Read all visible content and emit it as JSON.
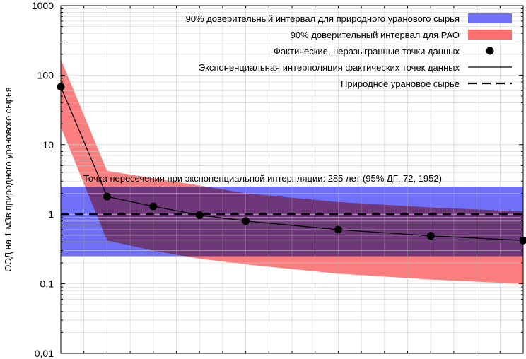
{
  "chart_data": {
    "type": "line",
    "ylabel": "ОЭД на 1 м3в природного уранового сырья",
    "yscale": "log",
    "ylim": [
      0.01,
      1000
    ],
    "y_ticks": [
      {
        "value": 1000,
        "label": "1000"
      },
      {
        "value": 100,
        "label": "100"
      },
      {
        "value": 10,
        "label": "10"
      },
      {
        "value": 1,
        "label": "1"
      },
      {
        "value": 0.1,
        "label": "0,1"
      },
      {
        "value": 0.01,
        "label": "0,01"
      }
    ],
    "xlim": [
      0,
      20
    ],
    "grid": true,
    "legend_position": "top-right",
    "annotation": "Точка пересечения при экспоненциальной интерпляции: 285 лет (95% ДГ: 72, 1952)",
    "series": [
      {
        "name": "90% доверительный интервал для природного уранового сырья",
        "type": "band",
        "color": "#6f6ff8",
        "x": [
          0,
          20
        ],
        "lower": [
          0.25,
          0.25
        ],
        "upper": [
          2.5,
          2.5
        ]
      },
      {
        "name": "90% доверительный интервал для РАО",
        "type": "band",
        "color": "#fc6f6f",
        "x": [
          0,
          2,
          4,
          6,
          8,
          12,
          16,
          20
        ],
        "lower": [
          18,
          0.42,
          0.3,
          0.23,
          0.19,
          0.14,
          0.115,
          0.1
        ],
        "upper": [
          170,
          4.2,
          3.3,
          2.6,
          2.0,
          1.5,
          1.25,
          1.1
        ]
      },
      {
        "name": "Фактические, неразыгранные точки данных",
        "type": "points",
        "color": "#000000",
        "x": [
          0,
          2,
          4,
          6,
          8,
          12,
          16,
          20
        ],
        "y": [
          68,
          1.8,
          1.3,
          0.97,
          0.8,
          0.6,
          0.49,
          0.42
        ]
      },
      {
        "name": "Экспоненциальная интерполяция фактических точек данных",
        "type": "line",
        "color": "#000000",
        "x": [
          0,
          2,
          4,
          6,
          8,
          12,
          16,
          20
        ],
        "y": [
          68,
          1.8,
          1.3,
          0.97,
          0.8,
          0.6,
          0.49,
          0.42
        ]
      },
      {
        "name": "Природное урановое сырьё",
        "type": "hline",
        "color": "#000000",
        "y": 1
      }
    ]
  }
}
